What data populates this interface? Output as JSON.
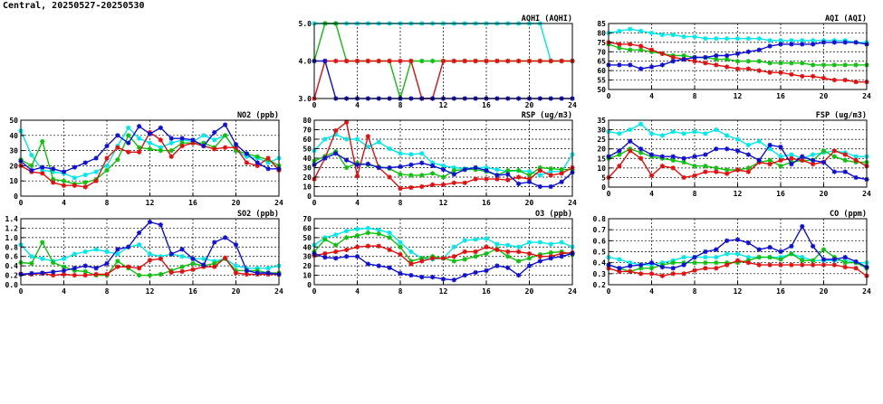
{
  "page": {
    "title": "Central, 20250527-20250530"
  },
  "series_colors": [
    "#00e8e8",
    "#10c010",
    "#e01010",
    "#1010d0"
  ],
  "chart_data": [
    {
      "id": "aqhi",
      "type": "line",
      "title": "AQHI (AQHI)",
      "xlim": [
        0,
        24
      ],
      "xticks": [
        0,
        4,
        8,
        12,
        16,
        20,
        24
      ],
      "ylim": [
        3,
        5
      ],
      "yticks": [
        "3.0",
        "4.0",
        "5.0"
      ],
      "grid": true,
      "series": [
        {
          "values": [
            5,
            5,
            5,
            5,
            5,
            5,
            5,
            5,
            5,
            5,
            5,
            5,
            5,
            5,
            5,
            5,
            5,
            5,
            5,
            5,
            5,
            5,
            4,
            4,
            4
          ]
        },
        {
          "values": [
            4,
            5,
            5,
            4,
            4,
            4,
            4,
            4,
            3,
            4,
            4,
            4,
            4,
            4,
            4,
            4,
            4,
            4,
            4,
            4,
            4,
            4,
            4,
            4,
            4
          ]
        },
        {
          "values": [
            3,
            4,
            4,
            4,
            4,
            4,
            4,
            4,
            4,
            4,
            3,
            3,
            4,
            4,
            4,
            4,
            4,
            4,
            4,
            4,
            4,
            4,
            4,
            4,
            4
          ]
        },
        {
          "values": [
            4,
            4,
            3,
            3,
            3,
            3,
            3,
            3,
            3,
            3,
            3,
            3,
            3,
            3,
            3,
            3,
            3,
            3,
            3,
            3,
            3,
            3,
            3,
            3,
            3
          ]
        }
      ]
    },
    {
      "id": "aqi",
      "type": "line",
      "title": "AQI (AQI)",
      "xlim": [
        0,
        24
      ],
      "xticks": [
        0,
        4,
        8,
        12,
        16,
        20,
        24
      ],
      "ylim": [
        50,
        85
      ],
      "yticks": [
        "50",
        "55",
        "60",
        "65",
        "70",
        "75",
        "80",
        "85"
      ],
      "grid": true,
      "series": [
        {
          "values": [
            80,
            81,
            82,
            81,
            80,
            79,
            79,
            78,
            78,
            77,
            77,
            77,
            77,
            77,
            77,
            76,
            76,
            76,
            76,
            76,
            76,
            76,
            76,
            75,
            75
          ]
        },
        {
          "values": [
            74,
            72,
            71,
            71,
            70,
            69,
            68,
            68,
            67,
            67,
            66,
            66,
            65,
            65,
            65,
            64,
            64,
            64,
            64,
            63,
            63,
            63,
            63,
            63,
            63
          ]
        },
        {
          "values": [
            75,
            74,
            74,
            73,
            71,
            69,
            67,
            66,
            65,
            64,
            63,
            62,
            61,
            61,
            60,
            59,
            59,
            58,
            57,
            57,
            56,
            55,
            55,
            54,
            54
          ]
        },
        {
          "values": [
            63,
            63,
            63,
            61,
            62,
            63,
            65,
            66,
            67,
            67,
            68,
            68,
            69,
            70,
            71,
            73,
            74,
            74,
            74,
            74,
            75,
            75,
            75,
            75,
            74
          ]
        }
      ]
    },
    {
      "id": "no2",
      "type": "line",
      "title": "NO2 (ppb)",
      "xlim": [
        0,
        24
      ],
      "xticks": [
        0,
        4,
        8,
        12,
        16,
        20,
        24
      ],
      "ylim": [
        0,
        50
      ],
      "yticks": [
        "0",
        "10",
        "20",
        "30",
        "40",
        "50"
      ],
      "grid": true,
      "series": [
        {
          "values": [
            43,
            27,
            17,
            16,
            15,
            12,
            14,
            16,
            20,
            33,
            45,
            38,
            35,
            32,
            35,
            37,
            36,
            40,
            37,
            40,
            30,
            26,
            25,
            22,
            25
          ]
        },
        {
          "values": [
            24,
            20,
            36,
            11,
            10,
            8,
            9,
            11,
            17,
            24,
            40,
            32,
            31,
            30,
            30,
            35,
            35,
            35,
            32,
            40,
            30,
            28,
            26,
            24,
            20
          ]
        },
        {
          "values": [
            20,
            16,
            15,
            9,
            7,
            7,
            6,
            10,
            25,
            32,
            29,
            29,
            42,
            37,
            26,
            33,
            35,
            33,
            31,
            32,
            32,
            22,
            20,
            25,
            17
          ]
        },
        {
          "values": [
            23,
            17,
            19,
            18,
            16,
            19,
            22,
            25,
            33,
            40,
            35,
            46,
            41,
            45,
            38,
            38,
            37,
            33,
            42,
            47,
            34,
            28,
            22,
            18,
            18
          ]
        }
      ]
    },
    {
      "id": "rsp",
      "type": "line",
      "title": "RSP (ug/m3)",
      "xlim": [
        0,
        24
      ],
      "xticks": [
        0,
        4,
        8,
        12,
        16,
        20,
        24
      ],
      "ylim": [
        0,
        80
      ],
      "yticks": [
        "0",
        "10",
        "20",
        "30",
        "40",
        "50",
        "60",
        "70",
        "80"
      ],
      "grid": true,
      "series": [
        {
          "values": [
            48,
            60,
            65,
            60,
            60,
            52,
            57,
            50,
            45,
            44,
            45,
            35,
            32,
            30,
            29,
            30,
            30,
            28,
            26,
            27,
            26,
            22,
            26,
            26,
            44
          ]
        },
        {
          "values": [
            37,
            42,
            47,
            30,
            35,
            33,
            31,
            29,
            23,
            22,
            22,
            24,
            20,
            27,
            28,
            28,
            26,
            22,
            27,
            27,
            22,
            30,
            29,
            28,
            28
          ]
        },
        {
          "values": [
            18,
            40,
            69,
            78,
            21,
            63,
            30,
            20,
            8,
            9,
            10,
            12,
            12,
            14,
            14,
            18,
            18,
            18,
            17,
            20,
            18,
            27,
            22,
            24,
            30
          ]
        },
        {
          "values": [
            33,
            40,
            45,
            38,
            33,
            34,
            30,
            30,
            31,
            33,
            35,
            32,
            28,
            23,
            28,
            30,
            27,
            22,
            23,
            13,
            15,
            10,
            10,
            15,
            25
          ]
        }
      ]
    },
    {
      "id": "fsp",
      "type": "line",
      "title": "FSP (ug/m3)",
      "xlim": [
        0,
        24
      ],
      "xticks": [
        0,
        4,
        8,
        12,
        16,
        20,
        24
      ],
      "ylim": [
        0,
        35
      ],
      "yticks": [
        "0",
        "5",
        "10",
        "15",
        "20",
        "25",
        "30",
        "35"
      ],
      "grid": true,
      "series": [
        {
          "values": [
            29,
            28,
            30,
            33,
            28,
            27,
            29,
            28,
            29,
            28,
            30,
            27,
            25,
            22,
            24,
            20,
            16,
            17,
            15,
            17,
            18,
            19,
            18,
            16,
            16
          ]
        },
        {
          "values": [
            15,
            17,
            20,
            18,
            16,
            15,
            14,
            13,
            11,
            11,
            10,
            9,
            9,
            10,
            13,
            14,
            11,
            13,
            14,
            14,
            19,
            16,
            14,
            13,
            13
          ]
        },
        {
          "values": [
            5,
            11,
            19,
            15,
            6,
            11,
            10,
            5,
            6,
            8,
            8,
            7,
            9,
            8,
            13,
            12,
            14,
            15,
            14,
            12,
            13,
            19,
            17,
            14,
            11
          ]
        },
        {
          "values": [
            16,
            19,
            24,
            20,
            17,
            16,
            16,
            15,
            16,
            17,
            20,
            20,
            19,
            17,
            14,
            22,
            21,
            12,
            16,
            14,
            13,
            8,
            8,
            5,
            4
          ]
        }
      ]
    },
    {
      "id": "so2",
      "type": "line",
      "title": "SO2 (ppb)",
      "xlim": [
        0,
        24
      ],
      "xticks": [
        0,
        4,
        8,
        12,
        16,
        20,
        24
      ],
      "ylim": [
        0,
        1.4
      ],
      "yticks": [
        "0.0",
        "0.2",
        "0.4",
        "0.6",
        "0.8",
        "1.0",
        "1.2",
        "1.4"
      ],
      "grid": true,
      "series": [
        {
          "values": [
            0.85,
            0.6,
            0.55,
            0.5,
            0.55,
            0.65,
            0.7,
            0.75,
            0.7,
            0.65,
            0.8,
            0.85,
            0.65,
            0.6,
            0.65,
            0.6,
            0.55,
            0.55,
            0.5,
            0.55,
            0.4,
            0.35,
            0.35,
            0.35,
            0.4
          ]
        },
        {
          "values": [
            0.47,
            0.45,
            0.9,
            0.47,
            0.38,
            0.3,
            0.28,
            0.2,
            0.2,
            0.5,
            0.35,
            0.2,
            0.2,
            0.22,
            0.3,
            0.38,
            0.45,
            0.4,
            0.45,
            0.55,
            0.3,
            0.3,
            0.3,
            0.25,
            0.25
          ]
        },
        {
          "values": [
            0.23,
            0.22,
            0.24,
            0.2,
            0.22,
            0.2,
            0.2,
            0.22,
            0.22,
            0.38,
            0.38,
            0.35,
            0.52,
            0.55,
            0.26,
            0.28,
            0.32,
            0.38,
            0.38,
            0.57,
            0.25,
            0.22,
            0.22,
            0.22,
            0.22
          ]
        },
        {
          "values": [
            0.22,
            0.24,
            0.25,
            0.27,
            0.3,
            0.35,
            0.4,
            0.35,
            0.45,
            0.75,
            0.8,
            1.1,
            1.33,
            1.27,
            0.65,
            0.75,
            0.55,
            0.42,
            0.9,
            1.0,
            0.85,
            0.3,
            0.25,
            0.25,
            0.22
          ]
        }
      ]
    },
    {
      "id": "o3",
      "type": "line",
      "title": "O3 (ppb)",
      "xlim": [
        0,
        24
      ],
      "xticks": [
        0,
        4,
        8,
        12,
        16,
        20,
        24
      ],
      "ylim": [
        0,
        70
      ],
      "yticks": [
        "0",
        "10",
        "20",
        "30",
        "40",
        "50",
        "60",
        "70"
      ],
      "grid": true,
      "series": [
        {
          "values": [
            42,
            50,
            53,
            57,
            59,
            60,
            58,
            55,
            45,
            35,
            28,
            27,
            28,
            40,
            47,
            48,
            49,
            43,
            42,
            40,
            45,
            45,
            43,
            45,
            40
          ]
        },
        {
          "values": [
            35,
            48,
            42,
            50,
            52,
            55,
            54,
            50,
            40,
            25,
            28,
            30,
            28,
            25,
            27,
            30,
            33,
            38,
            30,
            25,
            28,
            32,
            34,
            35,
            32
          ]
        },
        {
          "values": [
            31,
            33,
            35,
            37,
            40,
            41,
            41,
            37,
            32,
            22,
            25,
            28,
            28,
            30,
            35,
            35,
            40,
            37,
            35,
            35,
            33,
            30,
            30,
            33,
            34
          ]
        },
        {
          "values": [
            33,
            29,
            28,
            30,
            30,
            22,
            20,
            18,
            12,
            10,
            8,
            8,
            6,
            5,
            10,
            13,
            15,
            20,
            18,
            10,
            20,
            25,
            28,
            30,
            33
          ]
        }
      ]
    },
    {
      "id": "co",
      "type": "line",
      "title": "CO (ppm)",
      "xlim": [
        0,
        24
      ],
      "xticks": [
        0,
        4,
        8,
        12,
        16,
        20,
        24
      ],
      "ylim": [
        0.2,
        0.8
      ],
      "yticks": [
        "0.2",
        "0.3",
        "0.4",
        "0.5",
        "0.6",
        "0.7",
        "0.8"
      ],
      "grid": true,
      "series": [
        {
          "values": [
            0.45,
            0.43,
            0.4,
            0.38,
            0.38,
            0.4,
            0.42,
            0.45,
            0.45,
            0.45,
            0.45,
            0.48,
            0.48,
            0.45,
            0.45,
            0.45,
            0.45,
            0.48,
            0.45,
            0.42,
            0.42,
            0.42,
            0.42,
            0.4,
            0.4
          ]
        },
        {
          "values": [
            0.38,
            0.35,
            0.32,
            0.35,
            0.35,
            0.38,
            0.4,
            0.4,
            0.4,
            0.4,
            0.4,
            0.4,
            0.4,
            0.42,
            0.45,
            0.45,
            0.43,
            0.48,
            0.42,
            0.42,
            0.52,
            0.45,
            0.4,
            0.4,
            0.35
          ]
        },
        {
          "values": [
            0.35,
            0.32,
            0.32,
            0.3,
            0.3,
            0.28,
            0.3,
            0.3,
            0.33,
            0.35,
            0.35,
            0.38,
            0.42,
            0.4,
            0.38,
            0.38,
            0.38,
            0.38,
            0.38,
            0.38,
            0.38,
            0.38,
            0.36,
            0.35,
            0.28
          ]
        },
        {
          "values": [
            0.38,
            0.35,
            0.37,
            0.38,
            0.4,
            0.36,
            0.35,
            0.38,
            0.45,
            0.5,
            0.52,
            0.6,
            0.61,
            0.58,
            0.52,
            0.54,
            0.5,
            0.55,
            0.73,
            0.55,
            0.43,
            0.43,
            0.45,
            0.41,
            0.36
          ]
        }
      ]
    }
  ]
}
